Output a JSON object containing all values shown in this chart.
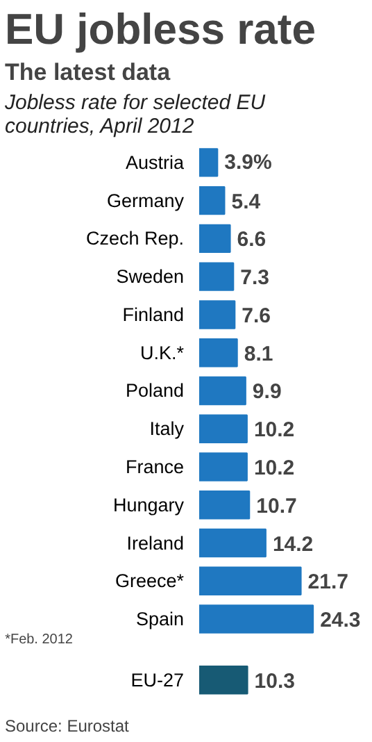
{
  "chart_data": {
    "type": "bar",
    "orientation": "horizontal",
    "title": "EU jobless rate",
    "subtitle": "The latest data",
    "xlabel": "Jobless rate for selected EU countries, April 2012",
    "categories": [
      "Austria",
      "Germany",
      "Czech Rep.",
      "Sweden",
      "Finland",
      "U.K.*",
      "Poland",
      "Italy",
      "France",
      "Hungary",
      "Ireland",
      "Greece*",
      "Spain",
      "EU-27"
    ],
    "values": [
      3.9,
      5.4,
      6.6,
      7.3,
      7.6,
      8.1,
      9.9,
      10.2,
      10.2,
      10.7,
      14.2,
      21.7,
      24.3,
      10.3
    ],
    "value_labels": [
      "3.9%",
      "5.4",
      "6.6",
      "7.3",
      "7.6",
      "8.1",
      "9.9",
      "10.2",
      "10.2",
      "10.7",
      "14.2",
      "21.7",
      "24.3",
      "10.3"
    ],
    "colors": [
      "#1f78c1",
      "#1f78c1",
      "#1f78c1",
      "#1f78c1",
      "#1f78c1",
      "#1f78c1",
      "#1f78c1",
      "#1f78c1",
      "#1f78c1",
      "#1f78c1",
      "#1f78c1",
      "#1f78c1",
      "#1f78c1",
      "#175a74"
    ],
    "tick_labels": "y",
    "annotations": [
      "*Feb. 2012",
      "Source: Eurostat"
    ]
  }
}
